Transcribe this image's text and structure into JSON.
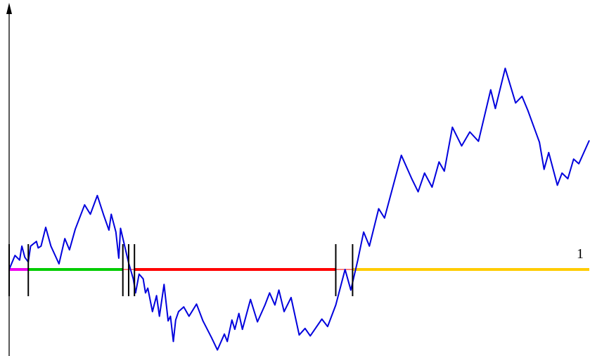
{
  "chart_data": {
    "type": "line",
    "title": "",
    "xlabel": "",
    "ylabel": "",
    "xlim": [
      0,
      1
    ],
    "ylim": [
      -1.0,
      2.52
    ],
    "grid": false,
    "legend": "none",
    "x_tick_labels": [
      {
        "x": 1,
        "label": "1"
      }
    ],
    "colors": {
      "path": "#0000dd",
      "axis": "#000000",
      "markers": "#000000",
      "excursions": [
        "#ee00ee",
        "#00cc00",
        "#ff0000",
        "#ffcc00"
      ]
    },
    "series": [
      {
        "values": [
          [
            0.0,
            0.0
          ],
          [
            0.01,
            0.15
          ],
          [
            0.018,
            0.1
          ],
          [
            0.022,
            0.25
          ],
          [
            0.027,
            0.13
          ],
          [
            0.033,
            0.08
          ],
          [
            0.037,
            0.25
          ],
          [
            0.047,
            0.3
          ],
          [
            0.05,
            0.23
          ],
          [
            0.055,
            0.25
          ],
          [
            0.063,
            0.45
          ],
          [
            0.072,
            0.25
          ],
          [
            0.086,
            0.06
          ],
          [
            0.096,
            0.33
          ],
          [
            0.104,
            0.21
          ],
          [
            0.114,
            0.43
          ],
          [
            0.13,
            0.69
          ],
          [
            0.14,
            0.59
          ],
          [
            0.152,
            0.79
          ],
          [
            0.163,
            0.58
          ],
          [
            0.172,
            0.42
          ],
          [
            0.176,
            0.59
          ],
          [
            0.184,
            0.4
          ],
          [
            0.189,
            0.12
          ],
          [
            0.192,
            0.44
          ],
          [
            0.206,
            0.07
          ],
          [
            0.214,
            -0.1
          ],
          [
            0.218,
            -0.25
          ],
          [
            0.224,
            -0.05
          ],
          [
            0.231,
            -0.1
          ],
          [
            0.235,
            -0.25
          ],
          [
            0.239,
            -0.2
          ],
          [
            0.247,
            -0.45
          ],
          [
            0.254,
            -0.28
          ],
          [
            0.259,
            -0.5
          ],
          [
            0.267,
            -0.16
          ],
          [
            0.274,
            -0.55
          ],
          [
            0.278,
            -0.5
          ],
          [
            0.283,
            -0.77
          ],
          [
            0.287,
            -0.54
          ],
          [
            0.292,
            -0.45
          ],
          [
            0.301,
            -0.4
          ],
          [
            0.31,
            -0.5
          ],
          [
            0.323,
            -0.37
          ],
          [
            0.334,
            -0.55
          ],
          [
            0.349,
            -0.73
          ],
          [
            0.359,
            -0.86
          ],
          [
            0.371,
            -0.69
          ],
          [
            0.376,
            -0.77
          ],
          [
            0.384,
            -0.54
          ],
          [
            0.389,
            -0.64
          ],
          [
            0.396,
            -0.47
          ],
          [
            0.402,
            -0.64
          ],
          [
            0.416,
            -0.32
          ],
          [
            0.428,
            -0.56
          ],
          [
            0.441,
            -0.38
          ],
          [
            0.449,
            -0.25
          ],
          [
            0.458,
            -0.38
          ],
          [
            0.465,
            -0.22
          ],
          [
            0.474,
            -0.45
          ],
          [
            0.486,
            -0.3
          ],
          [
            0.5,
            -0.7
          ],
          [
            0.51,
            -0.63
          ],
          [
            0.519,
            -0.71
          ],
          [
            0.539,
            -0.53
          ],
          [
            0.549,
            -0.61
          ],
          [
            0.563,
            -0.38
          ],
          [
            0.579,
            0.0
          ],
          [
            0.589,
            -0.22
          ],
          [
            0.601,
            0.1
          ],
          [
            0.611,
            0.4
          ],
          [
            0.621,
            0.25
          ],
          [
            0.637,
            0.65
          ],
          [
            0.647,
            0.55
          ],
          [
            0.676,
            1.22
          ],
          [
            0.694,
            0.97
          ],
          [
            0.705,
            0.83
          ],
          [
            0.716,
            1.03
          ],
          [
            0.729,
            0.88
          ],
          [
            0.741,
            1.15
          ],
          [
            0.75,
            1.05
          ],
          [
            0.764,
            1.52
          ],
          [
            0.78,
            1.32
          ],
          [
            0.794,
            1.47
          ],
          [
            0.809,
            1.37
          ],
          [
            0.83,
            1.92
          ],
          [
            0.838,
            1.72
          ],
          [
            0.855,
            2.15
          ],
          [
            0.873,
            1.78
          ],
          [
            0.884,
            1.85
          ],
          [
            0.894,
            1.7
          ],
          [
            0.914,
            1.36
          ],
          [
            0.922,
            1.07
          ],
          [
            0.93,
            1.25
          ],
          [
            0.945,
            0.9
          ],
          [
            0.953,
            1.03
          ],
          [
            0.963,
            0.97
          ],
          [
            0.973,
            1.18
          ],
          [
            0.982,
            1.13
          ],
          [
            1.0,
            1.38
          ]
        ]
      }
    ],
    "zero_intervals": [
      {
        "start": 0.0,
        "end": 0.033,
        "color": "#ee00ee"
      },
      {
        "start": 0.033,
        "end": 0.196,
        "color": "#00cc00"
      },
      {
        "start": 0.216,
        "end": 0.563,
        "color": "#ff0000"
      },
      {
        "start": 0.592,
        "end": 1.0,
        "color": "#ffcc00"
      }
    ],
    "markers": [
      0.0,
      0.033,
      0.196,
      0.206,
      0.216,
      0.563,
      0.592
    ]
  }
}
